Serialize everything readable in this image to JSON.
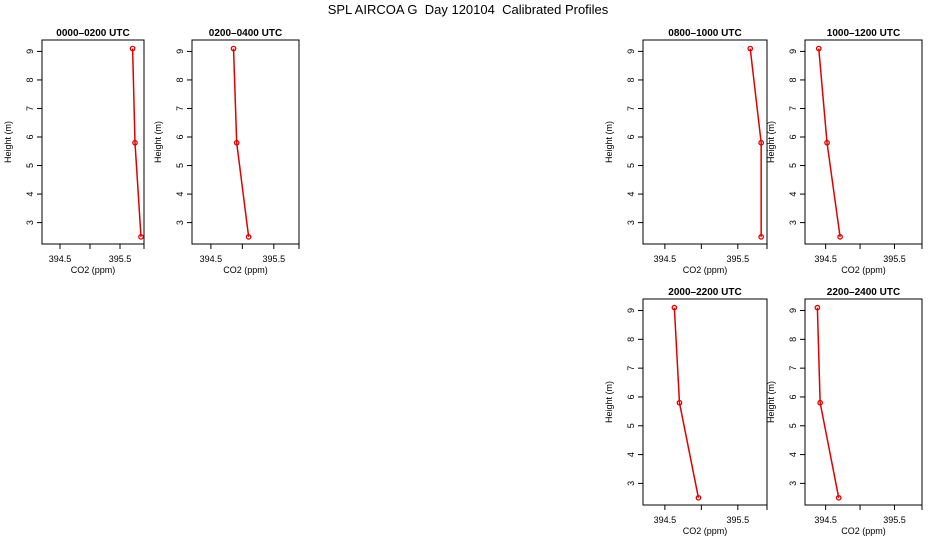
{
  "title": "SPL AIRCOA G  Day 120104  Calibrated Profiles",
  "chart_data": [
    {
      "type": "line",
      "title": "0000–0200 UTC",
      "xlabel": "CO2 (ppm)",
      "ylabel": "Height (m)",
      "xticks": [
        "394.5",
        "395.5"
      ],
      "yticks": [
        "3",
        "4",
        "5",
        "6",
        "7",
        "8",
        "9"
      ],
      "series": [
        {
          "x": [
            395.71,
            395.75,
            395.85
          ],
          "y": [
            9.1,
            5.8,
            2.5
          ]
        }
      ],
      "color": "#e00000"
    },
    {
      "type": "line",
      "title": "0200–0400 UTC",
      "xlabel": "CO2 (ppm)",
      "ylabel": "Height (m)",
      "xticks": [
        "394.5",
        "395.5"
      ],
      "yticks": [
        "3",
        "4",
        "5",
        "6",
        "7",
        "8",
        "9"
      ],
      "series": [
        {
          "x": [
            394.86,
            394.91,
            395.1
          ],
          "y": [
            9.1,
            5.8,
            2.5
          ]
        }
      ],
      "color": "#e00000"
    },
    {
      "type": "line",
      "title": "0800–1000 UTC",
      "xlabel": "CO2 (ppm)",
      "ylabel": "Height (m)",
      "xticks": [
        "394.5",
        "395.5"
      ],
      "yticks": [
        "3",
        "4",
        "5",
        "6",
        "7",
        "8",
        "9"
      ],
      "series": [
        {
          "x": [
            395.67,
            395.82,
            395.82
          ],
          "y": [
            9.1,
            5.8,
            2.5
          ]
        }
      ],
      "color": "#e00000"
    },
    {
      "type": "line",
      "title": "1000–1200 UTC",
      "xlabel": "CO2 (ppm)",
      "ylabel": "Height (m)",
      "xticks": [
        "394.5",
        "395.5"
      ],
      "yticks": [
        "3",
        "4",
        "5",
        "6",
        "7",
        "8",
        "9"
      ],
      "series": [
        {
          "x": [
            394.4,
            394.52,
            394.71
          ],
          "y": [
            9.1,
            5.8,
            2.5
          ]
        }
      ],
      "color": "#e00000"
    },
    {
      "type": "line",
      "title": "2000–2200 UTC",
      "xlabel": "CO2 (ppm)",
      "ylabel": "Height (m)",
      "xticks": [
        "394.5",
        "395.5"
      ],
      "yticks": [
        "3",
        "4",
        "5",
        "6",
        "7",
        "8",
        "9"
      ],
      "series": [
        {
          "x": [
            394.63,
            394.7,
            394.96
          ],
          "y": [
            9.1,
            5.8,
            2.5
          ]
        }
      ],
      "color": "#e00000"
    },
    {
      "type": "line",
      "title": "2200–2400 UTC",
      "xlabel": "CO2 (ppm)",
      "ylabel": "Height (m)",
      "xticks": [
        "394.5",
        "395.5"
      ],
      "yticks": [
        "3",
        "4",
        "5",
        "6",
        "7",
        "8",
        "9"
      ],
      "series": [
        {
          "x": [
            394.38,
            394.42,
            394.69
          ],
          "y": [
            9.1,
            5.8,
            2.5
          ]
        }
      ],
      "color": "#e00000"
    }
  ]
}
